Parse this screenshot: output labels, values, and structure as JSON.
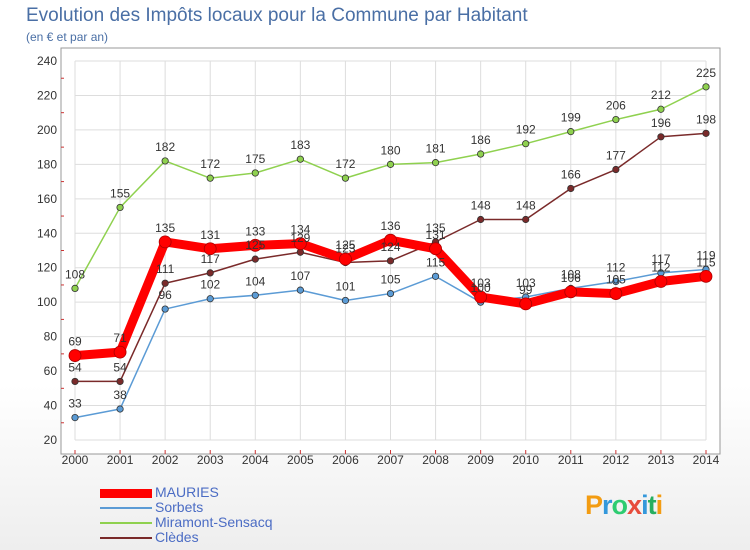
{
  "header": {
    "title": "Evolution des Impôts locaux pour la Commune par Habitant",
    "subtitle": "(en € et par an)"
  },
  "logo": {
    "letters": [
      "P",
      "r",
      "o",
      "x",
      "i",
      "t",
      "i"
    ],
    "colors": [
      "#f39c12",
      "#3498db",
      "#2ecc71",
      "#e74c3c",
      "#3498db",
      "#27ae60",
      "#f39c12"
    ]
  },
  "chart_data": {
    "type": "line",
    "title": "Evolution des Impôts locaux pour la Commune par Habitant",
    "subtitle": "(en € et par an)",
    "xlabel": "",
    "ylabel": "",
    "x": [
      "2000",
      "2001",
      "2002",
      "2003",
      "2004",
      "2005",
      "2006",
      "2007",
      "2008",
      "2009",
      "2010",
      "2011",
      "2012",
      "2013",
      "2014"
    ],
    "ylim": [
      20,
      240
    ],
    "yticks": [
      20,
      40,
      60,
      80,
      100,
      120,
      140,
      160,
      180,
      200,
      220,
      240
    ],
    "grid": true,
    "legend_position": "bottom-left",
    "series": [
      {
        "name": "MAURIES",
        "color": "#ff0000",
        "values": [
          69,
          71,
          135,
          131,
          133,
          134,
          125,
          136,
          131,
          103,
          99,
          106,
          105,
          112,
          115
        ]
      },
      {
        "name": "Sorbets",
        "color": "#5b9bd5",
        "values": [
          33,
          38,
          96,
          102,
          104,
          107,
          101,
          105,
          115,
          100,
          103,
          108,
          112,
          117,
          119
        ]
      },
      {
        "name": "Miramont-Sensacq",
        "color": "#8fd14f",
        "values": [
          108,
          155,
          182,
          172,
          175,
          183,
          172,
          180,
          181,
          186,
          192,
          199,
          206,
          212,
          225
        ]
      },
      {
        "name": "Clèdes",
        "color": "#7a2a2a",
        "values": [
          54,
          54,
          111,
          117,
          125,
          129,
          123,
          124,
          135,
          148,
          148,
          166,
          177,
          196,
          198
        ]
      }
    ]
  }
}
